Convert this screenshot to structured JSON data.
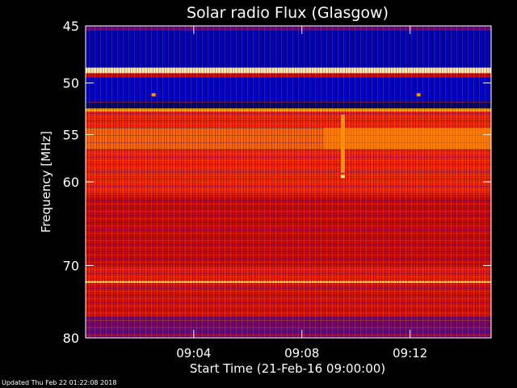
{
  "chart_data": {
    "type": "heatmap",
    "title": "Solar radio Flux (Glasgow)",
    "xlabel": "Start Time (21-Feb-16 09:00:00)",
    "ylabel": "Frequency [MHz]",
    "x_unit": "minutes after 09:00:00",
    "xlim": [
      0,
      15
    ],
    "ylim": [
      45,
      80
    ],
    "y_scale": "log",
    "y_inverted": true,
    "x_ticks": [
      {
        "value": 4,
        "label": "09:04"
      },
      {
        "value": 8,
        "label": "09:08"
      },
      {
        "value": 12,
        "label": "09:12"
      }
    ],
    "y_ticks": [
      {
        "value": 45,
        "label": "45"
      },
      {
        "value": 50,
        "label": "50"
      },
      {
        "value": 55,
        "label": "55"
      },
      {
        "value": 60,
        "label": "60"
      },
      {
        "value": 70,
        "label": "70"
      },
      {
        "value": 80,
        "label": "80"
      }
    ],
    "colormap": [
      "#000033",
      "#0000c8",
      "#5a0a8c",
      "#c80000",
      "#ff2a00",
      "#ff7a00",
      "#ffd200",
      "#ffffff"
    ],
    "bands": [
      {
        "from_mhz": 45.0,
        "to_mhz": 45.4,
        "level": 0.3
      },
      {
        "from_mhz": 45.4,
        "to_mhz": 48.6,
        "level": 0.12
      },
      {
        "from_mhz": 48.6,
        "to_mhz": 49.1,
        "level": 0.95
      },
      {
        "from_mhz": 49.1,
        "to_mhz": 49.5,
        "level": 0.45
      },
      {
        "from_mhz": 49.5,
        "to_mhz": 51.8,
        "level": 0.14
      },
      {
        "from_mhz": 51.8,
        "to_mhz": 52.4,
        "level": 0.05
      },
      {
        "from_mhz": 52.4,
        "to_mhz": 52.7,
        "level": 0.8
      },
      {
        "from_mhz": 52.7,
        "to_mhz": 54.3,
        "level": 0.55
      },
      {
        "from_mhz": 54.3,
        "to_mhz": 56.5,
        "level": 0.68
      },
      {
        "from_mhz": 56.5,
        "to_mhz": 61.5,
        "level": 0.55
      },
      {
        "from_mhz": 61.5,
        "to_mhz": 70.0,
        "level": 0.45
      },
      {
        "from_mhz": 70.0,
        "to_mhz": 72.0,
        "level": 0.52
      },
      {
        "from_mhz": 72.0,
        "to_mhz": 72.3,
        "level": 0.88
      },
      {
        "from_mhz": 72.3,
        "to_mhz": 77.0,
        "level": 0.48
      },
      {
        "from_mhz": 77.0,
        "to_mhz": 80.0,
        "level": 0.32
      }
    ],
    "features": [
      {
        "kind": "vertical-streak",
        "time_min": 9.5,
        "from_mhz": 53.0,
        "to_mhz": 59.0,
        "level": 0.78
      },
      {
        "kind": "spot",
        "time_min": 9.5,
        "freq_mhz": 59.4,
        "level": 0.92
      },
      {
        "kind": "spot",
        "time_min": 2.5,
        "freq_mhz": 51.1,
        "level": 0.75
      },
      {
        "kind": "spot",
        "time_min": 12.3,
        "freq_mhz": 51.1,
        "level": 0.75
      },
      {
        "kind": "brightening",
        "from_min": 8.8,
        "to_min": 15.0,
        "from_mhz": 54.3,
        "to_mhz": 56.5,
        "level": 0.74
      }
    ]
  },
  "footer": "Updated Thu Feb 22 01:22:08 2018"
}
